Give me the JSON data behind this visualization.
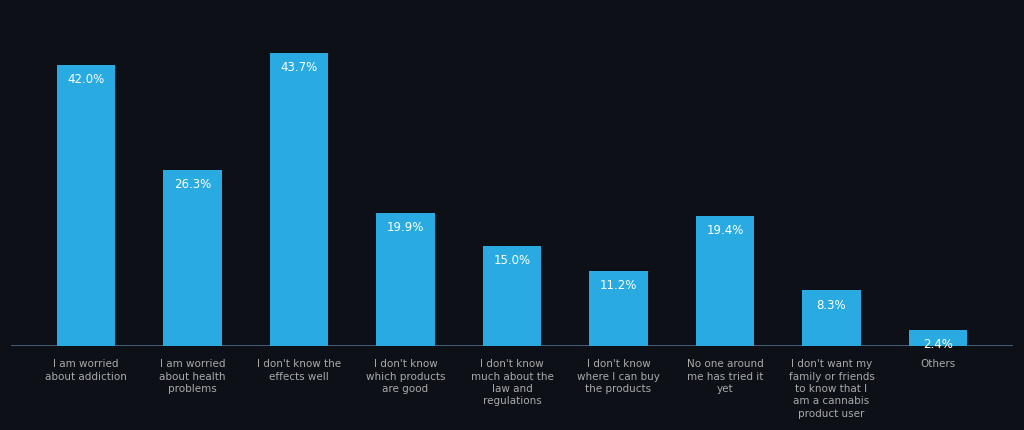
{
  "categories": [
    "I am worried\nabout addiction",
    "I am worried\nabout health\nproblems",
    "I don't know the\neffects well",
    "I don't know\nwhich products\nare good",
    "I don't know\nmuch about the\nlaw and\nregulations",
    "I don't know\nwhere I can buy\nthe products",
    "No one around\nme has tried it\nyet",
    "I don't want my\nfamily or friends\nto know that I\nam a cannabis\nproduct user",
    "Others"
  ],
  "values": [
    42.0,
    26.3,
    43.7,
    19.9,
    15.0,
    11.2,
    19.4,
    8.3,
    2.4
  ],
  "labels": [
    "42.0%",
    "26.3%",
    "43.7%",
    "19.9%",
    "15.0%",
    "11.2%",
    "19.4%",
    "8.3%",
    "2.4%"
  ],
  "bar_color": "#29ABE2",
  "label_color": "#FFFFFF",
  "background_color": "#0d1117",
  "axis_bg_color": "#0d1117",
  "tick_color": "#aaaaaa",
  "axisline_color": "#4a6a8a",
  "label_fontsize": 8.5,
  "tick_fontsize": 7.5,
  "ylim": [
    0,
    50
  ],
  "bar_width": 0.55
}
